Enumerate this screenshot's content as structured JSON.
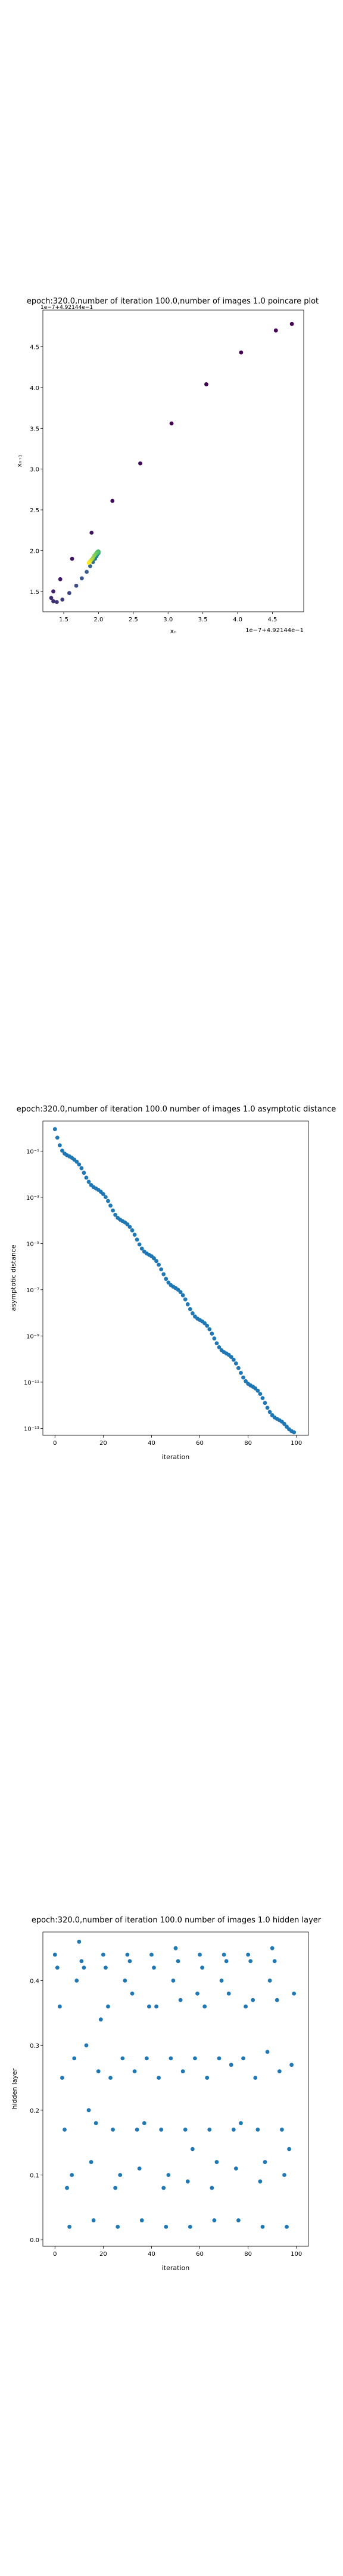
{
  "chart_data": [
    {
      "type": "scatter",
      "title": "epoch:320.0,number of iteration 100.0,number of images 1.0 poincare plot",
      "xlabel": "xₙ",
      "ylabel": "xₙ₊₁",
      "x_offset_label": "1e−7+4.92144e−1",
      "y_offset_label": "1e−7+4.92144e−1",
      "xticks": [
        "1.5",
        "2.0",
        "2.5",
        "3.0",
        "3.5",
        "4.0",
        "4.5"
      ],
      "yticks": [
        "1.5",
        "2.0",
        "2.5",
        "3.0",
        "3.5",
        "4.0",
        "4.5"
      ],
      "xlim": [
        1.2,
        4.95
      ],
      "ylim": [
        1.25,
        4.95
      ],
      "colormap": [
        "#440154",
        "#3b528b",
        "#21918c",
        "#5ec962",
        "#fde725"
      ],
      "points": [
        {
          "x": 4.78,
          "y": 4.78,
          "c": 0.0
        },
        {
          "x": 4.55,
          "y": 4.7,
          "c": 0.0
        },
        {
          "x": 4.05,
          "y": 4.43,
          "c": 0.0
        },
        {
          "x": 3.55,
          "y": 4.04,
          "c": 0.0
        },
        {
          "x": 3.05,
          "y": 3.56,
          "c": 0.0
        },
        {
          "x": 2.6,
          "y": 3.07,
          "c": 0.02
        },
        {
          "x": 2.2,
          "y": 2.61,
          "c": 0.03
        },
        {
          "x": 1.9,
          "y": 2.22,
          "c": 0.05
        },
        {
          "x": 1.62,
          "y": 1.9,
          "c": 0.06
        },
        {
          "x": 1.45,
          "y": 1.65,
          "c": 0.08
        },
        {
          "x": 1.35,
          "y": 1.5,
          "c": 0.1
        },
        {
          "x": 1.32,
          "y": 1.42,
          "c": 0.12
        },
        {
          "x": 1.35,
          "y": 1.38,
          "c": 0.14
        },
        {
          "x": 1.4,
          "y": 1.37,
          "c": 0.16
        },
        {
          "x": 1.48,
          "y": 1.4,
          "c": 0.18
        },
        {
          "x": 1.58,
          "y": 1.48,
          "c": 0.2
        },
        {
          "x": 1.68,
          "y": 1.57,
          "c": 0.23
        },
        {
          "x": 1.76,
          "y": 1.66,
          "c": 0.26
        },
        {
          "x": 1.83,
          "y": 1.74,
          "c": 0.29
        },
        {
          "x": 1.88,
          "y": 1.81,
          "c": 0.32
        },
        {
          "x": 1.92,
          "y": 1.86,
          "c": 0.36
        },
        {
          "x": 1.95,
          "y": 1.9,
          "c": 0.4
        },
        {
          "x": 1.97,
          "y": 1.93,
          "c": 0.44
        },
        {
          "x": 1.98,
          "y": 1.95,
          "c": 0.48
        },
        {
          "x": 1.99,
          "y": 1.96,
          "c": 0.52
        },
        {
          "x": 2.0,
          "y": 1.97,
          "c": 0.56
        },
        {
          "x": 2.0,
          "y": 1.98,
          "c": 0.6
        },
        {
          "x": 2.0,
          "y": 1.99,
          "c": 0.64
        },
        {
          "x": 1.99,
          "y": 1.99,
          "c": 0.68
        },
        {
          "x": 1.98,
          "y": 1.98,
          "c": 0.72
        },
        {
          "x": 1.96,
          "y": 1.96,
          "c": 0.76
        },
        {
          "x": 1.94,
          "y": 1.94,
          "c": 0.8
        },
        {
          "x": 1.92,
          "y": 1.91,
          "c": 0.84
        },
        {
          "x": 1.9,
          "y": 1.89,
          "c": 0.88
        },
        {
          "x": 1.88,
          "y": 1.87,
          "c": 0.92
        },
        {
          "x": 1.87,
          "y": 1.86,
          "c": 0.96
        },
        {
          "x": 1.86,
          "y": 1.85,
          "c": 1.0
        }
      ]
    },
    {
      "type": "scatter",
      "title": "epoch:320.0,number of iteration 100.0  number of images 1.0 asymptotic distance",
      "xlabel": "iteration",
      "ylabel": "asymptotic distance",
      "y_scale": "log",
      "color": "#1f77b4",
      "xticks": [
        "0",
        "20",
        "40",
        "60",
        "80",
        "100"
      ],
      "yticks": [
        "10⁻¹",
        "10⁻³",
        "10⁻⁵",
        "10⁻⁷",
        "10⁻⁹",
        "10⁻¹¹",
        "10⁻¹³"
      ],
      "xlim": [
        -5,
        105
      ],
      "ylim_log10": [
        -13.3,
        0.3
      ],
      "x": [
        0,
        1,
        2,
        3,
        4,
        5,
        6,
        7,
        8,
        9,
        10,
        11,
        12,
        13,
        14,
        15,
        16,
        17,
        18,
        19,
        20,
        21,
        22,
        23,
        24,
        25,
        26,
        27,
        28,
        29,
        30,
        31,
        32,
        33,
        34,
        35,
        36,
        37,
        38,
        39,
        40,
        41,
        42,
        43,
        44,
        45,
        46,
        47,
        48,
        49,
        50,
        51,
        52,
        53,
        54,
        55,
        56,
        57,
        58,
        59,
        60,
        61,
        62,
        63,
        64,
        65,
        66,
        67,
        68,
        69,
        70,
        71,
        72,
        73,
        74,
        75,
        76,
        77,
        78,
        79,
        80,
        81,
        82,
        83,
        84,
        85,
        86,
        87,
        88,
        89,
        90,
        91,
        92,
        93,
        94,
        95,
        96,
        97,
        98,
        99
      ],
      "log10_y": [
        -0.05,
        -0.42,
        -0.75,
        -0.98,
        -1.11,
        -1.18,
        -1.23,
        -1.29,
        -1.37,
        -1.46,
        -1.58,
        -1.74,
        -1.94,
        -2.15,
        -2.33,
        -2.47,
        -2.56,
        -2.62,
        -2.68,
        -2.76,
        -2.86,
        -2.99,
        -3.16,
        -3.36,
        -3.57,
        -3.76,
        -3.89,
        -3.97,
        -4.03,
        -4.09,
        -4.17,
        -4.28,
        -4.43,
        -4.62,
        -4.83,
        -5.04,
        -5.22,
        -5.35,
        -5.43,
        -5.49,
        -5.55,
        -5.64,
        -5.76,
        -5.92,
        -6.12,
        -6.33,
        -6.53,
        -6.69,
        -6.8,
        -6.87,
        -6.93,
        -7.0,
        -7.1,
        -7.24,
        -7.42,
        -7.63,
        -7.84,
        -8.02,
        -8.16,
        -8.25,
        -8.31,
        -8.37,
        -8.45,
        -8.56,
        -8.71,
        -8.9,
        -9.11,
        -9.32,
        -9.49,
        -9.62,
        -9.7,
        -9.76,
        -9.82,
        -9.91,
        -10.03,
        -10.19,
        -10.39,
        -10.6,
        -10.8,
        -10.96,
        -11.07,
        -11.14,
        -11.2,
        -11.27,
        -11.37,
        -11.51,
        -11.69,
        -11.9,
        -12.11,
        -12.29,
        -12.43,
        -12.53,
        -12.59,
        -12.65,
        -12.71,
        -12.81,
        -12.93,
        -13.04,
        -13.12,
        -13.17
      ]
    },
    {
      "type": "scatter",
      "title": "epoch:320.0,number of iteration 100.0  number of images 1.0 hidden layer",
      "xlabel": "iteration",
      "ylabel": "hidden layer",
      "color": "#1f77b4",
      "xticks": [
        "0",
        "20",
        "40",
        "60",
        "80",
        "100"
      ],
      "yticks": [
        "0.0",
        "0.1",
        "0.2",
        "0.3",
        "0.4"
      ],
      "xlim": [
        -5,
        105
      ],
      "ylim": [
        -0.01,
        0.475
      ],
      "x": [
        0,
        1,
        2,
        3,
        4,
        5,
        6,
        7,
        8,
        9,
        10,
        11,
        12,
        13,
        14,
        15,
        16,
        17,
        18,
        19,
        20,
        21,
        22,
        23,
        24,
        25,
        26,
        27,
        28,
        29,
        30,
        31,
        32,
        33,
        34,
        35,
        36,
        37,
        38,
        39,
        40,
        41,
        42,
        43,
        44,
        45,
        46,
        47,
        48,
        49,
        50,
        51,
        52,
        53,
        54,
        55,
        56,
        57,
        58,
        59,
        60,
        61,
        62,
        63,
        64,
        65,
        66,
        67,
        68,
        69,
        70,
        71,
        72,
        73,
        74,
        75,
        76,
        77,
        78,
        79,
        80,
        81,
        82,
        83,
        84,
        85,
        86,
        87,
        88,
        89,
        90,
        91,
        92,
        93,
        94,
        95,
        96,
        97,
        98,
        99
      ],
      "y": [
        0.44,
        0.42,
        0.36,
        0.25,
        0.17,
        0.08,
        0.02,
        0.1,
        0.28,
        0.4,
        0.46,
        0.43,
        0.42,
        0.3,
        0.2,
        0.12,
        0.03,
        0.18,
        0.26,
        0.34,
        0.44,
        0.42,
        0.36,
        0.25,
        0.17,
        0.08,
        0.02,
        0.1,
        0.28,
        0.4,
        0.44,
        0.43,
        0.38,
        0.26,
        0.17,
        0.11,
        0.03,
        0.18,
        0.28,
        0.36,
        0.44,
        0.42,
        0.36,
        0.25,
        0.17,
        0.08,
        0.02,
        0.1,
        0.28,
        0.4,
        0.45,
        0.43,
        0.37,
        0.26,
        0.17,
        0.09,
        0.02,
        0.14,
        0.28,
        0.38,
        0.44,
        0.42,
        0.36,
        0.25,
        0.17,
        0.08,
        0.03,
        0.12,
        0.28,
        0.4,
        0.44,
        0.43,
        0.38,
        0.27,
        0.17,
        0.11,
        0.03,
        0.18,
        0.28,
        0.36,
        0.44,
        0.43,
        0.37,
        0.25,
        0.17,
        0.09,
        0.02,
        0.12,
        0.29,
        0.4,
        0.45,
        0.43,
        0.37,
        0.26,
        0.17,
        0.1,
        0.02,
        0.14,
        0.27,
        0.38
      ]
    }
  ]
}
